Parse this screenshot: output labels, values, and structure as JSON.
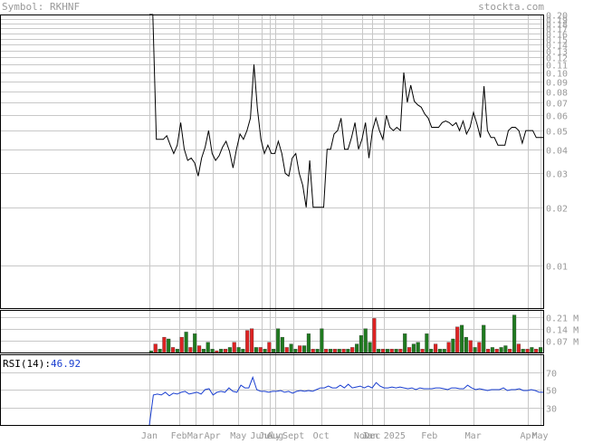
{
  "header": {
    "symbol_label": "Symbol:",
    "symbol": "RKHNF",
    "site": "stockta.com"
  },
  "colors": {
    "grid": "#c8c8c8",
    "frame": "#000000",
    "label": "#999999",
    "price_line": "#000000",
    "volume_up": "#1f7a1f",
    "volume_down": "#dd2222",
    "rsi_line": "#1a3fd0",
    "rsi_value": "#1a3fd0"
  },
  "chart_data": [
    {
      "type": "line",
      "name": "price",
      "yscale": "log",
      "ylim": [
        0.006,
        0.2
      ],
      "y_ticks": [
        0.01,
        0.02,
        0.03,
        0.04,
        0.05,
        0.06,
        0.07,
        0.08,
        0.09,
        0.1,
        0.11,
        0.12,
        0.13,
        0.14,
        0.15,
        0.16,
        0.17,
        0.18,
        0.19,
        0.2
      ],
      "y_tick_labels": [
        "0.01",
        "0.02",
        "0.03",
        "0.04",
        "0.05",
        "0.06",
        "0.07",
        "0.08",
        "0.09",
        "0.10",
        "0.11",
        "0.12",
        "0.13",
        "0.14",
        "0.15",
        "0.16",
        "0.17",
        "0.18",
        "0.19",
        "0.20"
      ],
      "values": [
        0.2,
        0.2,
        0.045,
        0.045,
        0.045,
        0.047,
        0.042,
        0.038,
        0.042,
        0.055,
        0.04,
        0.035,
        0.036,
        0.034,
        0.029,
        0.036,
        0.041,
        0.05,
        0.038,
        0.035,
        0.037,
        0.041,
        0.044,
        0.039,
        0.032,
        0.04,
        0.048,
        0.045,
        0.05,
        0.058,
        0.11,
        0.065,
        0.045,
        0.038,
        0.042,
        0.038,
        0.038,
        0.044,
        0.038,
        0.03,
        0.029,
        0.036,
        0.038,
        0.03,
        0.026,
        0.02,
        0.035,
        0.02,
        0.02,
        0.02,
        0.02,
        0.04,
        0.04,
        0.048,
        0.05,
        0.058,
        0.04,
        0.04,
        0.046,
        0.055,
        0.04,
        0.045,
        0.055,
        0.036,
        0.05,
        0.058,
        0.05,
        0.045,
        0.06,
        0.052,
        0.05,
        0.052,
        0.05,
        0.1,
        0.07,
        0.086,
        0.071,
        0.068,
        0.066,
        0.061,
        0.058,
        0.052,
        0.052,
        0.052,
        0.055,
        0.056,
        0.055,
        0.053,
        0.055,
        0.05,
        0.056,
        0.048,
        0.052,
        0.062,
        0.054,
        0.046,
        0.085,
        0.05,
        0.046,
        0.046,
        0.042,
        0.042,
        0.042,
        0.05,
        0.052,
        0.052,
        0.05,
        0.043,
        0.05,
        0.05,
        0.05,
        0.046,
        0.046,
        0.046
      ]
    },
    {
      "type": "bar",
      "name": "volume",
      "ylim": [
        0,
        0.25
      ],
      "y_ticks": [
        0.07,
        0.14,
        0.21
      ],
      "y_tick_labels": [
        "0.07 M",
        "0.14 M",
        "0.21 M"
      ],
      "bars": [
        {
          "v": 0.01,
          "up": true
        },
        {
          "v": 0.05,
          "up": false
        },
        {
          "v": 0.02,
          "up": true
        },
        {
          "v": 0.09,
          "up": false
        },
        {
          "v": 0.08,
          "up": true
        },
        {
          "v": 0.03,
          "up": false
        },
        {
          "v": 0.02,
          "up": true
        },
        {
          "v": 0.09,
          "up": false
        },
        {
          "v": 0.12,
          "up": true
        },
        {
          "v": 0.03,
          "up": false
        },
        {
          "v": 0.11,
          "up": true
        },
        {
          "v": 0.04,
          "up": false
        },
        {
          "v": 0.02,
          "up": true
        },
        {
          "v": 0.06,
          "up": true
        },
        {
          "v": 0.02,
          "up": true
        },
        {
          "v": 0.01,
          "up": false
        },
        {
          "v": 0.02,
          "up": true
        },
        {
          "v": 0.02,
          "up": false
        },
        {
          "v": 0.03,
          "up": true
        },
        {
          "v": 0.06,
          "up": false
        },
        {
          "v": 0.03,
          "up": true
        },
        {
          "v": 0.02,
          "up": true
        },
        {
          "v": 0.13,
          "up": false
        },
        {
          "v": 0.14,
          "up": false
        },
        {
          "v": 0.03,
          "up": true
        },
        {
          "v": 0.03,
          "up": false
        },
        {
          "v": 0.02,
          "up": true
        },
        {
          "v": 0.06,
          "up": false
        },
        {
          "v": 0.02,
          "up": true
        },
        {
          "v": 0.14,
          "up": true
        },
        {
          "v": 0.09,
          "up": true
        },
        {
          "v": 0.03,
          "up": false
        },
        {
          "v": 0.05,
          "up": true
        },
        {
          "v": 0.02,
          "up": true
        },
        {
          "v": 0.04,
          "up": false
        },
        {
          "v": 0.04,
          "up": true
        },
        {
          "v": 0.11,
          "up": true
        },
        {
          "v": 0.02,
          "up": false
        },
        {
          "v": 0.02,
          "up": true
        },
        {
          "v": 0.14,
          "up": true
        },
        {
          "v": 0.02,
          "up": false
        },
        {
          "v": 0.02,
          "up": true
        },
        {
          "v": 0.02,
          "up": false
        },
        {
          "v": 0.02,
          "up": true
        },
        {
          "v": 0.02,
          "up": false
        },
        {
          "v": 0.02,
          "up": true
        },
        {
          "v": 0.03,
          "up": false
        },
        {
          "v": 0.05,
          "up": true
        },
        {
          "v": 0.1,
          "up": true
        },
        {
          "v": 0.14,
          "up": true
        },
        {
          "v": 0.06,
          "up": true
        },
        {
          "v": 0.2,
          "up": false
        },
        {
          "v": 0.02,
          "up": true
        },
        {
          "v": 0.02,
          "up": false
        },
        {
          "v": 0.02,
          "up": true
        },
        {
          "v": 0.02,
          "up": false
        },
        {
          "v": 0.02,
          "up": true
        },
        {
          "v": 0.02,
          "up": false
        },
        {
          "v": 0.11,
          "up": true
        },
        {
          "v": 0.03,
          "up": false
        },
        {
          "v": 0.05,
          "up": true
        },
        {
          "v": 0.06,
          "up": true
        },
        {
          "v": 0.02,
          "up": false
        },
        {
          "v": 0.11,
          "up": true
        },
        {
          "v": 0.02,
          "up": true
        },
        {
          "v": 0.05,
          "up": false
        },
        {
          "v": 0.02,
          "up": true
        },
        {
          "v": 0.02,
          "up": true
        },
        {
          "v": 0.06,
          "up": false
        },
        {
          "v": 0.08,
          "up": true
        },
        {
          "v": 0.15,
          "up": false
        },
        {
          "v": 0.16,
          "up": true
        },
        {
          "v": 0.09,
          "up": true
        },
        {
          "v": 0.07,
          "up": false
        },
        {
          "v": 0.03,
          "up": true
        },
        {
          "v": 0.06,
          "up": false
        },
        {
          "v": 0.16,
          "up": true
        },
        {
          "v": 0.02,
          "up": false
        },
        {
          "v": 0.03,
          "up": true
        },
        {
          "v": 0.02,
          "up": false
        },
        {
          "v": 0.03,
          "up": true
        },
        {
          "v": 0.04,
          "up": true
        },
        {
          "v": 0.02,
          "up": false
        },
        {
          "v": 0.22,
          "up": true
        },
        {
          "v": 0.05,
          "up": false
        },
        {
          "v": 0.02,
          "up": true
        },
        {
          "v": 0.02,
          "up": false
        },
        {
          "v": 0.03,
          "up": true
        },
        {
          "v": 0.02,
          "up": false
        },
        {
          "v": 0.03,
          "up": true
        }
      ]
    },
    {
      "type": "line",
      "name": "rsi",
      "label": "RSI(14):",
      "current_value": "46.92",
      "ylim": [
        10,
        90
      ],
      "y_ticks": [
        30,
        50,
        70
      ],
      "y_tick_labels": [
        "30",
        "50",
        "70"
      ],
      "values": [
        10,
        44,
        45,
        44,
        47,
        43,
        46,
        45,
        47,
        48,
        45,
        46,
        47,
        45,
        50,
        51,
        44,
        47,
        48,
        47,
        52,
        48,
        47,
        55,
        52,
        52,
        64,
        50,
        48,
        48,
        47,
        48,
        48,
        49,
        47,
        48,
        46,
        48,
        49,
        48,
        49,
        48,
        50,
        52,
        52,
        54,
        52,
        52,
        55,
        52,
        56,
        52,
        53,
        54,
        52,
        54,
        52,
        58,
        54,
        52,
        52,
        53,
        52,
        53,
        52,
        51,
        52,
        50,
        52,
        51,
        51,
        51,
        52,
        52,
        51,
        50,
        52,
        52,
        51,
        51,
        55,
        52,
        50,
        51,
        50,
        49,
        50,
        50,
        50,
        52,
        49,
        50,
        50,
        51,
        49,
        49,
        50,
        49,
        47,
        47
      ]
    }
  ],
  "x_axis": {
    "labels": [
      {
        "text": "Jan",
        "pos": 0.0
      },
      {
        "text": "Feb",
        "pos": 0.075
      },
      {
        "text": "Mar",
        "pos": 0.117
      },
      {
        "text": "Apr",
        "pos": 0.16
      },
      {
        "text": "May",
        "pos": 0.226
      },
      {
        "text": "June",
        "pos": 0.284
      },
      {
        "text": "July",
        "pos": 0.306
      },
      {
        "text": "Aug",
        "pos": 0.32
      },
      {
        "text": "Sept",
        "pos": 0.366
      },
      {
        "text": "Oct",
        "pos": 0.436
      },
      {
        "text": "Nov",
        "pos": 0.54
      },
      {
        "text": "Dec",
        "pos": 0.566
      },
      {
        "text": "Jan 2025",
        "pos": 0.595
      },
      {
        "text": "Feb",
        "pos": 0.711
      },
      {
        "text": "Mar",
        "pos": 0.822
      },
      {
        "text": "Apr",
        "pos": 0.962
      },
      {
        "text": "May",
        "pos": 0.992
      }
    ]
  }
}
